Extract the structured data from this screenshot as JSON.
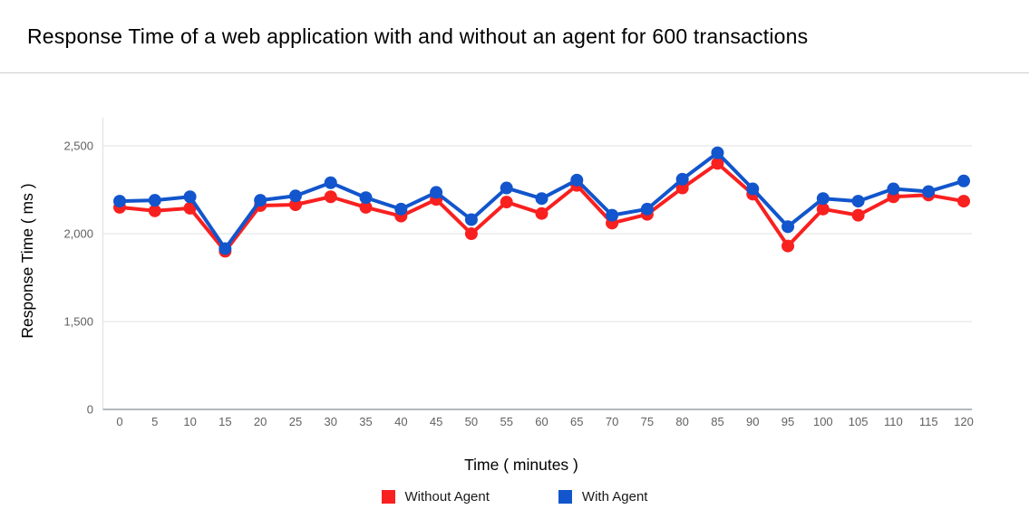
{
  "page": {
    "background_color": "#ffffff",
    "divider_color": "#cccccc"
  },
  "chart_data": {
    "type": "line",
    "title": "Response Time of a web application with and without an agent for 600 transactions",
    "xlabel": "Time ( minutes )",
    "ylabel": "Response Time ( ms )",
    "legend_position": "bottom",
    "grid": "horizontal-only",
    "ylim": [
      0,
      2600
    ],
    "yticks": [
      {
        "value": 0,
        "label": "0"
      },
      {
        "value": 1500,
        "label": "1,500"
      },
      {
        "value": 2000,
        "label": "2,000"
      },
      {
        "value": 2500,
        "label": "2,500"
      }
    ],
    "ytick_spacing_note": "tick marks are evenly spaced on screen although values 0/1,500/2,000/2,500 are not linear",
    "categories": [
      0,
      5,
      10,
      15,
      20,
      25,
      30,
      35,
      40,
      45,
      50,
      55,
      60,
      65,
      70,
      75,
      80,
      85,
      90,
      95,
      100,
      105,
      110,
      115,
      120
    ],
    "series": [
      {
        "name": "Without Agent",
        "color": "#f92020",
        "values": [
          2150,
          2130,
          2145,
          1900,
          2160,
          2165,
          2210,
          2150,
          2100,
          2195,
          2000,
          2180,
          2115,
          2275,
          2060,
          2110,
          2260,
          2400,
          2225,
          1930,
          2140,
          2105,
          2210,
          2220,
          2185
        ]
      },
      {
        "name": "With Agent",
        "color": "#1255cc",
        "values": [
          2185,
          2190,
          2210,
          1915,
          2190,
          2215,
          2290,
          2205,
          2140,
          2235,
          2080,
          2260,
          2200,
          2305,
          2105,
          2140,
          2310,
          2460,
          2255,
          2040,
          2200,
          2185,
          2255,
          2240,
          2300
        ]
      }
    ],
    "colors": {
      "gridline": "#e0e0e0",
      "axis_baseline": "#9aa0a6",
      "tick_text": "#616161",
      "axis_title_text": "#000000"
    }
  }
}
